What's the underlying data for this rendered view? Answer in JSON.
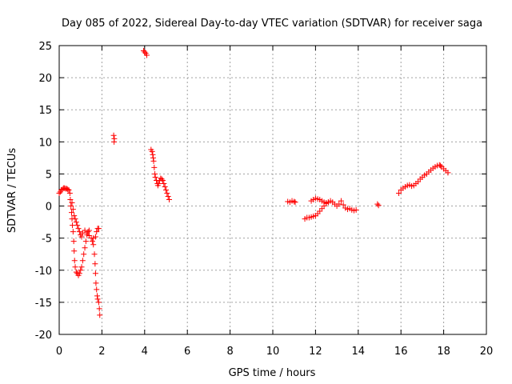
{
  "chart_data": {
    "type": "scatter",
    "title": "Day 085 of 2022, Sidereal Day-to-day VTEC variation (SDTVAR) for receiver saga",
    "xlabel": "GPS time / hours",
    "ylabel": "SDTVAR / TECUs",
    "xlim": [
      0,
      20
    ],
    "ylim": [
      -20,
      25
    ],
    "x_ticks": [
      0,
      2,
      4,
      6,
      8,
      10,
      12,
      14,
      16,
      18,
      20
    ],
    "y_ticks": [
      -20,
      -15,
      -10,
      -5,
      0,
      5,
      10,
      15,
      20,
      25
    ],
    "grid": true,
    "marker": "+",
    "colors": {
      "series": "#ff0000",
      "grid": "#a0a0a0",
      "axes": "#000000"
    },
    "series": [
      {
        "name": "SDTVAR",
        "points": [
          [
            0.0,
            2.0
          ],
          [
            0.05,
            2.2
          ],
          [
            0.1,
            2.5
          ],
          [
            0.15,
            2.6
          ],
          [
            0.2,
            2.8
          ],
          [
            0.25,
            2.8
          ],
          [
            0.3,
            2.7
          ],
          [
            0.35,
            2.7
          ],
          [
            0.4,
            2.6
          ],
          [
            0.45,
            2.5
          ],
          [
            0.5,
            2.0
          ],
          [
            0.52,
            1.0
          ],
          [
            0.55,
            0.0
          ],
          [
            0.58,
            -1.0
          ],
          [
            0.6,
            -2.0
          ],
          [
            0.62,
            -3.0
          ],
          [
            0.65,
            -4.0
          ],
          [
            0.68,
            -5.5
          ],
          [
            0.7,
            -7.0
          ],
          [
            0.72,
            -8.5
          ],
          [
            0.75,
            -9.5
          ],
          [
            0.8,
            -10.3
          ],
          [
            0.85,
            -10.5
          ],
          [
            0.9,
            -10.8
          ],
          [
            0.95,
            -10.5
          ],
          [
            1.0,
            -10.0
          ],
          [
            1.05,
            -9.5
          ],
          [
            1.1,
            -8.5
          ],
          [
            1.15,
            -7.5
          ],
          [
            1.2,
            -6.5
          ],
          [
            1.25,
            -5.5
          ],
          [
            1.3,
            -4.5
          ],
          [
            1.35,
            -4.0
          ],
          [
            1.4,
            -3.8
          ],
          [
            0.6,
            0.5
          ],
          [
            0.65,
            -0.5
          ],
          [
            0.7,
            -1.5
          ],
          [
            0.75,
            -2.0
          ],
          [
            0.8,
            -2.5
          ],
          [
            0.85,
            -3.0
          ],
          [
            0.9,
            -3.5
          ],
          [
            0.95,
            -4.0
          ],
          [
            1.0,
            -4.5
          ],
          [
            1.05,
            -4.8
          ],
          [
            1.1,
            -4.2
          ],
          [
            1.2,
            -3.8
          ],
          [
            1.3,
            -4.2
          ],
          [
            1.4,
            -4.6
          ],
          [
            1.5,
            -5.0
          ],
          [
            1.55,
            -5.5
          ],
          [
            1.6,
            -5.0
          ],
          [
            1.7,
            -4.8
          ],
          [
            1.75,
            -4.0
          ],
          [
            1.8,
            -3.5
          ],
          [
            1.85,
            -3.5
          ],
          [
            1.6,
            -6.0
          ],
          [
            1.65,
            -7.5
          ],
          [
            1.68,
            -9.0
          ],
          [
            1.7,
            -10.5
          ],
          [
            1.72,
            -12.0
          ],
          [
            1.75,
            -13.0
          ],
          [
            1.78,
            -14.0
          ],
          [
            1.8,
            -14.5
          ],
          [
            1.85,
            -15.0
          ],
          [
            1.88,
            -16.0
          ],
          [
            1.9,
            -17.0
          ],
          [
            2.55,
            11.0
          ],
          [
            2.57,
            10.0
          ],
          [
            2.58,
            10.5
          ],
          [
            3.95,
            24.2
          ],
          [
            4.0,
            24.0
          ],
          [
            4.05,
            23.8
          ],
          [
            4.1,
            23.5
          ],
          [
            4.3,
            8.8
          ],
          [
            4.35,
            8.5
          ],
          [
            4.38,
            8.0
          ],
          [
            4.4,
            7.5
          ],
          [
            4.42,
            7.0
          ],
          [
            4.45,
            6.0
          ],
          [
            4.48,
            5.0
          ],
          [
            4.5,
            4.5
          ],
          [
            4.55,
            4.0
          ],
          [
            4.6,
            3.5
          ],
          [
            4.62,
            3.2
          ],
          [
            4.65,
            3.5
          ],
          [
            4.7,
            4.0
          ],
          [
            4.75,
            4.3
          ],
          [
            4.8,
            4.2
          ],
          [
            4.85,
            4.0
          ],
          [
            4.9,
            3.5
          ],
          [
            4.95,
            3.0
          ],
          [
            5.0,
            2.5
          ],
          [
            5.05,
            2.0
          ],
          [
            5.1,
            1.5
          ],
          [
            5.15,
            1.0
          ],
          [
            10.7,
            0.7
          ],
          [
            10.8,
            0.6
          ],
          [
            10.9,
            0.8
          ],
          [
            11.0,
            0.7
          ],
          [
            11.05,
            0.6
          ],
          [
            11.5,
            -2.0
          ],
          [
            11.6,
            -1.8
          ],
          [
            11.7,
            -1.8
          ],
          [
            11.8,
            -1.7
          ],
          [
            11.9,
            -1.6
          ],
          [
            12.0,
            -1.5
          ],
          [
            12.1,
            -1.2
          ],
          [
            12.2,
            -0.8
          ],
          [
            12.3,
            -0.4
          ],
          [
            12.4,
            0.0
          ],
          [
            12.5,
            0.4
          ],
          [
            12.6,
            0.6
          ],
          [
            12.7,
            0.8
          ],
          [
            12.8,
            0.6
          ],
          [
            12.9,
            0.3
          ],
          [
            11.8,
            0.8
          ],
          [
            11.9,
            1.0
          ],
          [
            12.0,
            1.2
          ],
          [
            12.1,
            1.1
          ],
          [
            12.2,
            1.0
          ],
          [
            12.3,
            0.8
          ],
          [
            12.4,
            0.6
          ],
          [
            12.5,
            0.5
          ],
          [
            12.6,
            0.6
          ],
          [
            13.0,
            0.0
          ],
          [
            13.1,
            0.3
          ],
          [
            13.2,
            0.8
          ],
          [
            13.3,
            0.2
          ],
          [
            13.4,
            -0.3
          ],
          [
            13.5,
            -0.5
          ],
          [
            13.6,
            -0.4
          ],
          [
            13.7,
            -0.6
          ],
          [
            13.8,
            -0.7
          ],
          [
            13.9,
            -0.6
          ],
          [
            14.9,
            0.3
          ],
          [
            14.95,
            0.1
          ],
          [
            15.9,
            2.0
          ],
          [
            16.0,
            2.5
          ],
          [
            16.1,
            2.8
          ],
          [
            16.2,
            3.0
          ],
          [
            16.3,
            3.2
          ],
          [
            16.4,
            3.3
          ],
          [
            16.5,
            3.1
          ],
          [
            16.6,
            3.2
          ],
          [
            16.7,
            3.5
          ],
          [
            16.8,
            3.8
          ],
          [
            16.9,
            4.2
          ],
          [
            17.0,
            4.5
          ],
          [
            17.1,
            4.8
          ],
          [
            17.2,
            5.0
          ],
          [
            17.3,
            5.3
          ],
          [
            17.4,
            5.6
          ],
          [
            17.5,
            5.9
          ],
          [
            17.6,
            6.1
          ],
          [
            17.7,
            6.3
          ],
          [
            17.8,
            6.4
          ],
          [
            17.85,
            6.3
          ],
          [
            17.9,
            6.1
          ],
          [
            18.0,
            5.8
          ],
          [
            18.1,
            5.5
          ],
          [
            18.2,
            5.2
          ]
        ]
      }
    ]
  }
}
